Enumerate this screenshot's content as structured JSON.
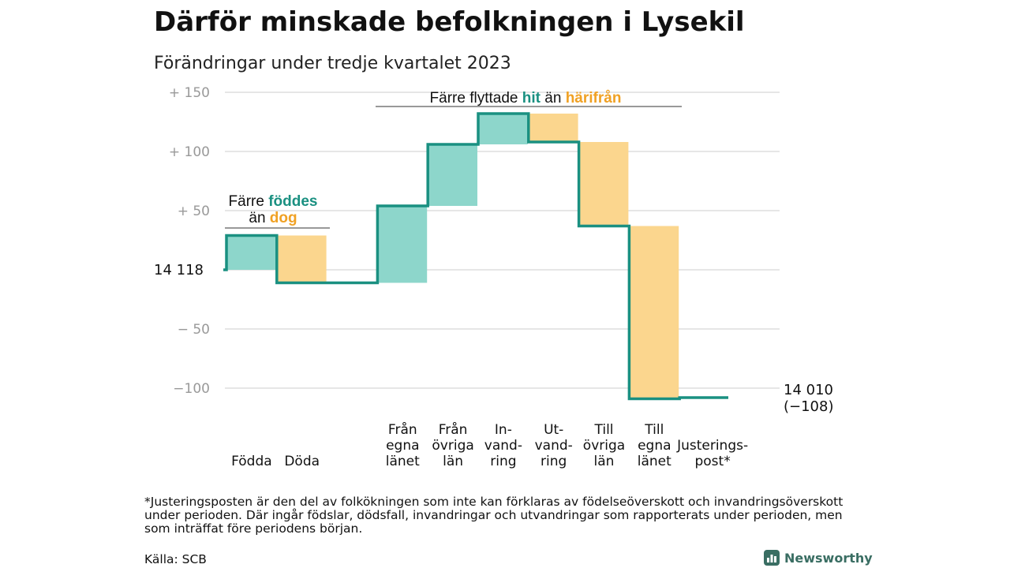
{
  "title": "Därför minskade befolkningen i Lysekil",
  "subtitle": "Förändringar under tredje kvartalet 2023",
  "chart_data": {
    "type": "waterfall",
    "start_value": 14118,
    "start_label": "14  118",
    "end_label_line1": "14 010",
    "end_label_line2": "(−108)",
    "ylim": [
      -110,
      155
    ],
    "yticks": [
      {
        "value": 150,
        "label": "+  150"
      },
      {
        "value": 100,
        "label": "+  100"
      },
      {
        "value": 50,
        "label": "+  50"
      },
      {
        "value": -50,
        "label": "−  50"
      },
      {
        "value": -100,
        "label": "−100"
      }
    ],
    "steps": [
      {
        "label_lines": [
          "Födda"
        ],
        "change": 29,
        "kind": "in"
      },
      {
        "label_lines": [
          "Döda"
        ],
        "change": -40,
        "kind": "out"
      },
      {
        "label_lines": [
          ""
        ],
        "change": 0,
        "kind": "none"
      },
      {
        "label_lines": [
          "Från",
          "egna",
          "länet"
        ],
        "change": 65,
        "kind": "in"
      },
      {
        "label_lines": [
          "Från",
          "övriga",
          "län"
        ],
        "change": 52,
        "kind": "in"
      },
      {
        "label_lines": [
          "In-",
          "vand-",
          "ring"
        ],
        "change": 26,
        "kind": "in"
      },
      {
        "label_lines": [
          "Ut-",
          "vand-",
          "ring"
        ],
        "change": -24,
        "kind": "out"
      },
      {
        "label_lines": [
          "Till",
          "övriga",
          "län"
        ],
        "change": -71,
        "kind": "out"
      },
      {
        "label_lines": [
          "Till",
          "egna",
          "länet"
        ],
        "change": -146,
        "kind": "out"
      },
      {
        "label_lines": [
          "Justerings-",
          "post*"
        ],
        "change": 1,
        "kind": "adjust"
      }
    ],
    "annotations": [
      {
        "lines": [
          [
            {
              "text": "Färre ",
              "color": "#111111"
            },
            {
              "text": "föddes",
              "color": "#1a9081"
            }
          ],
          [
            {
              "text": "än ",
              "color": "#111111"
            },
            {
              "text": "dog",
              "color": "#f0a124"
            }
          ]
        ]
      },
      {
        "lines": [
          [
            {
              "text": "Färre flyttade ",
              "color": "#111111"
            },
            {
              "text": "hit",
              "color": "#1a9081"
            },
            {
              "text": " än ",
              "color": "#111111"
            },
            {
              "text": "härifrån",
              "color": "#f0a124"
            }
          ]
        ]
      }
    ],
    "colors": {
      "in_fill": "#8dd6cb",
      "out_fill": "#fbd68e",
      "line": "#1a9081",
      "grid": "#dddddd",
      "tick": "#999999"
    },
    "grid": true
  },
  "footnote": "*Justeringsposten är den del av folkökningen som inte kan förklaras av födelseöverskott och invandringsöverskott under perioden. Där ingår födslar, dödsfall, invandringar och utvandringar som rapporterats under perioden, men som inträffat före periodens början.",
  "source": "Källa: SCB",
  "brand": {
    "name": "Newsworthy",
    "icon": "bar-chart-icon"
  }
}
